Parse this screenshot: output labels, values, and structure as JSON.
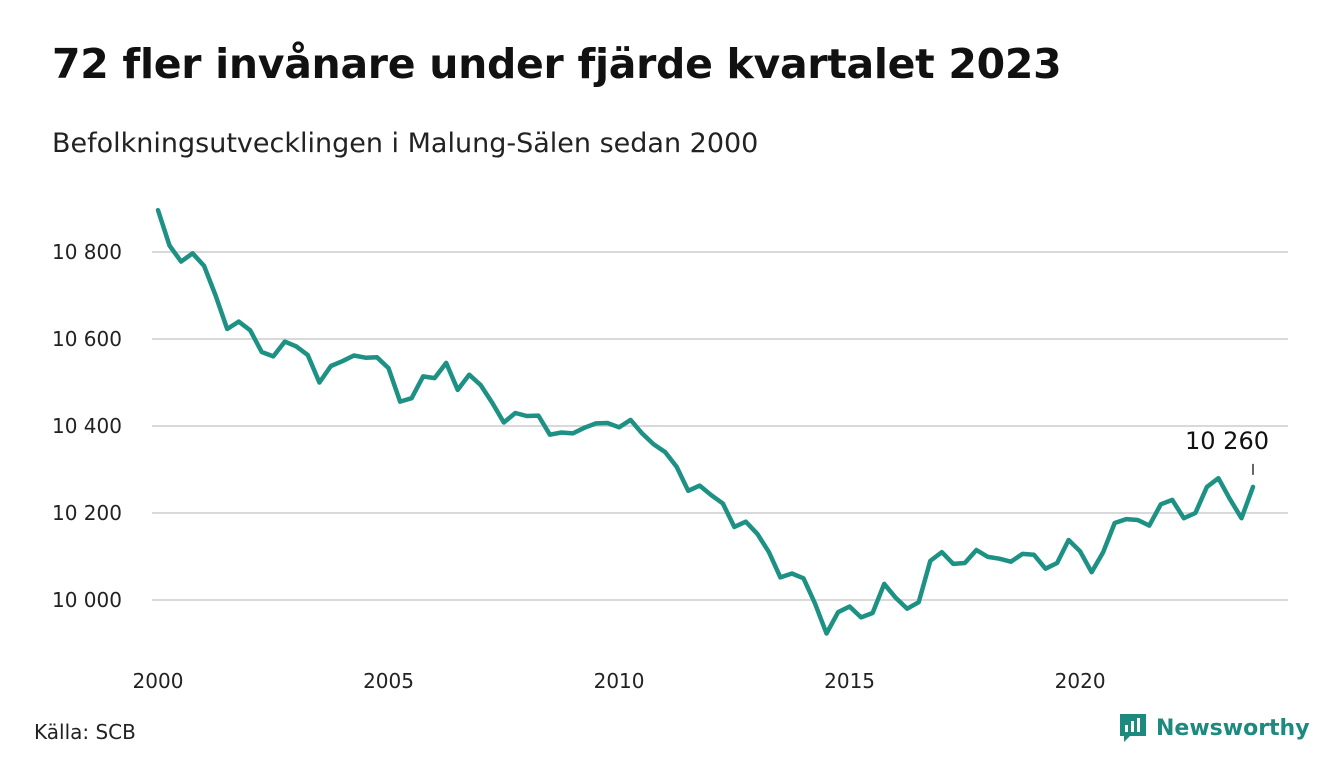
{
  "header": {
    "title": "72 fler invånare under fjärde kvartalet 2023",
    "subtitle": "Befolkningsutvecklingen i Malung-Sälen sedan 2000"
  },
  "footer": {
    "source": "Källa: SCB",
    "brand": "Newsworthy"
  },
  "colors": {
    "line": "#1c9184",
    "grid": "#d9d9d9",
    "brand": "#1c8a7e"
  },
  "chart_data": {
    "type": "line",
    "xlim": [
      2000,
      2024
    ],
    "ylim": [
      9900,
      10920
    ],
    "x_ticks": [
      2000,
      2005,
      2010,
      2015,
      2020
    ],
    "x_tick_labels": [
      "2000",
      "2005",
      "2010",
      "2015",
      "2020"
    ],
    "y_ticks": [
      10000,
      10200,
      10400,
      10600,
      10800
    ],
    "y_tick_labels": [
      "10 000",
      "10 200",
      "10 400",
      "10 600",
      "10 800"
    ],
    "grid": "horizontal",
    "annotation": {
      "x": 2023.75,
      "y": 10260,
      "label": "10 260"
    },
    "series": [
      {
        "x": [
          2000.0,
          2000.25,
          2000.5,
          2000.75,
          2001.0,
          2001.25,
          2001.5,
          2001.75,
          2002.0,
          2002.25,
          2002.5,
          2002.75,
          2003.0,
          2003.25,
          2003.5,
          2003.75,
          2004.0,
          2004.25,
          2004.5,
          2004.75,
          2005.0,
          2005.25,
          2005.5,
          2005.75,
          2006.0,
          2006.25,
          2006.5,
          2006.75,
          2007.0,
          2007.25,
          2007.5,
          2007.75,
          2008.0,
          2008.25,
          2008.5,
          2008.75,
          2009.0,
          2009.25,
          2009.5,
          2009.75,
          2010.0,
          2010.25,
          2010.5,
          2010.75,
          2011.0,
          2011.25,
          2011.5,
          2011.75,
          2012.0,
          2012.25,
          2012.5,
          2012.75,
          2013.0,
          2013.25,
          2013.5,
          2013.75,
          2014.0,
          2014.25,
          2014.5,
          2014.75,
          2015.0,
          2015.25,
          2015.5,
          2015.75,
          2016.0,
          2016.25,
          2016.5,
          2016.75,
          2017.0,
          2017.25,
          2017.5,
          2017.75,
          2018.0,
          2018.25,
          2018.5,
          2018.75,
          2019.0,
          2019.25,
          2019.5,
          2019.75,
          2020.0,
          2020.25,
          2020.5,
          2020.75,
          2021.0,
          2021.25,
          2021.5,
          2021.75,
          2022.0,
          2022.25,
          2022.5,
          2022.75,
          2023.0,
          2023.25,
          2023.5,
          2023.75
        ],
        "values": [
          10896,
          10815,
          10778,
          10797,
          10768,
          10700,
          10623,
          10640,
          10620,
          10570,
          10560,
          10594,
          10583,
          10563,
          10500,
          10538,
          10549,
          10562,
          10557,
          10558,
          10533,
          10456,
          10464,
          10514,
          10510,
          10545,
          10483,
          10518,
          10494,
          10453,
          10408,
          10430,
          10423,
          10424,
          10380,
          10385,
          10383,
          10396,
          10406,
          10407,
          10397,
          10414,
          10383,
          10358,
          10340,
          10306,
          10251,
          10263,
          10241,
          10222,
          10168,
          10180,
          10152,
          10110,
          10052,
          10061,
          10050,
          9992,
          9923,
          9972,
          9985,
          9960,
          9970,
          10037,
          10005,
          9980,
          9995,
          10090,
          10110,
          10083,
          10085,
          10115,
          10099,
          10095,
          10088,
          10106,
          10104,
          10072,
          10085,
          10138,
          10112,
          10064,
          10110,
          10177,
          10186,
          10184,
          10171,
          10220,
          10230,
          10188,
          10200,
          10260,
          10280,
          10232,
          10188,
          10260
        ]
      }
    ]
  }
}
